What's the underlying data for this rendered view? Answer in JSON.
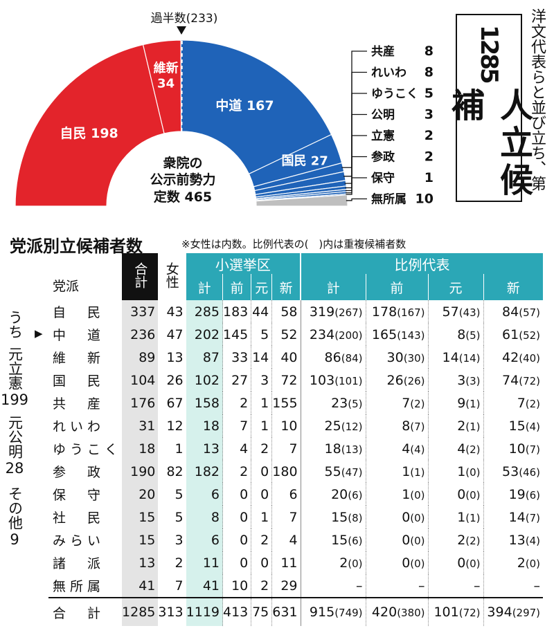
{
  "chart_data": [
    {
      "type": "pie",
      "title": "衆院の公示前勢力",
      "total_label": "定数",
      "total": 465,
      "majority_label": "過半数",
      "majority": 233,
      "slices": [
        {
          "name": "自民",
          "value": 198,
          "color": "#e3242b",
          "label_side": "left"
        },
        {
          "name": "維新",
          "value": 34,
          "color": "#e3242b",
          "label_side": "left"
        },
        {
          "name": "中道",
          "value": 167,
          "color": "#1f63b8",
          "label_side": "right"
        },
        {
          "name": "国民",
          "value": 27,
          "color": "#1f63b8",
          "label_side": "right"
        },
        {
          "name": "共産",
          "value": 8,
          "color": "#1f63b8"
        },
        {
          "name": "れいわ",
          "value": 8,
          "color": "#1f63b8"
        },
        {
          "name": "ゆうこく",
          "value": 5,
          "color": "#1f63b8"
        },
        {
          "name": "公明",
          "value": 3,
          "color": "#1f63b8"
        },
        {
          "name": "立憲",
          "value": 2,
          "color": "#1f63b8"
        },
        {
          "name": "参政",
          "value": 2,
          "color": "#1f63b8"
        },
        {
          "name": "保守",
          "value": 1,
          "color": "#1f63b8"
        },
        {
          "name": "無所属",
          "value": 10,
          "color": "#bfbfbf"
        }
      ]
    },
    {
      "type": "table",
      "title": "党派別立候補者数",
      "note": "※女性は内数。比例代表の(　)内は重複候補者数",
      "headers": {
        "party": "党派",
        "total": "合計",
        "female": "女性",
        "district": "小選挙区",
        "pr": "比例代表",
        "kei": "計",
        "mae": "前",
        "moto": "元",
        "shin": "新"
      },
      "rows": [
        {
          "party": "自　民",
          "marker": "",
          "total": "337",
          "female": "43",
          "d_kei": "285",
          "d_mae": "183",
          "d_moto": "44",
          "d_shin": "58",
          "p_kei": "319",
          "p_kei_dup": "(267)",
          "p_mae": "178",
          "p_mae_dup": "(167)",
          "p_moto": "57",
          "p_moto_dup": "(43)",
          "p_shin": "84",
          "p_shin_dup": "(57)"
        },
        {
          "party": "中　道",
          "marker": "▶",
          "total": "236",
          "female": "47",
          "d_kei": "202",
          "d_mae": "145",
          "d_moto": "5",
          "d_shin": "52",
          "p_kei": "234",
          "p_kei_dup": "(200)",
          "p_mae": "165",
          "p_mae_dup": "(143)",
          "p_moto": "8",
          "p_moto_dup": "(5)",
          "p_shin": "61",
          "p_shin_dup": "(52)"
        },
        {
          "party": "維　新",
          "marker": "",
          "total": "89",
          "female": "13",
          "d_kei": "87",
          "d_mae": "33",
          "d_moto": "14",
          "d_shin": "40",
          "p_kei": "86",
          "p_kei_dup": "(84)",
          "p_mae": "30",
          "p_mae_dup": "(30)",
          "p_moto": "14",
          "p_moto_dup": "(14)",
          "p_shin": "42",
          "p_shin_dup": "(40)"
        },
        {
          "party": "国　民",
          "marker": "",
          "total": "104",
          "female": "26",
          "d_kei": "102",
          "d_mae": "27",
          "d_moto": "3",
          "d_shin": "72",
          "p_kei": "103",
          "p_kei_dup": "(101)",
          "p_mae": "26",
          "p_mae_dup": "(26)",
          "p_moto": "3",
          "p_moto_dup": "(3)",
          "p_shin": "74",
          "p_shin_dup": "(72)"
        },
        {
          "party": "共　産",
          "marker": "",
          "total": "176",
          "female": "67",
          "d_kei": "158",
          "d_mae": "2",
          "d_moto": "1",
          "d_shin": "155",
          "p_kei": "23",
          "p_kei_dup": "(5)",
          "p_mae": "7",
          "p_mae_dup": "(2)",
          "p_moto": "9",
          "p_moto_dup": "(1)",
          "p_shin": "7",
          "p_shin_dup": "(2)"
        },
        {
          "party": "れいわ",
          "marker": "",
          "total": "31",
          "female": "12",
          "d_kei": "18",
          "d_mae": "7",
          "d_moto": "1",
          "d_shin": "10",
          "p_kei": "25",
          "p_kei_dup": "(12)",
          "p_mae": "8",
          "p_mae_dup": "(7)",
          "p_moto": "2",
          "p_moto_dup": "(1)",
          "p_shin": "15",
          "p_shin_dup": "(4)"
        },
        {
          "party": "ゆうこく",
          "marker": "",
          "total": "18",
          "female": "1",
          "d_kei": "13",
          "d_mae": "4",
          "d_moto": "2",
          "d_shin": "7",
          "p_kei": "18",
          "p_kei_dup": "(13)",
          "p_mae": "4",
          "p_mae_dup": "(4)",
          "p_moto": "4",
          "p_moto_dup": "(2)",
          "p_shin": "10",
          "p_shin_dup": "(7)"
        },
        {
          "party": "参　政",
          "marker": "",
          "total": "190",
          "female": "82",
          "d_kei": "182",
          "d_mae": "2",
          "d_moto": "0",
          "d_shin": "180",
          "p_kei": "55",
          "p_kei_dup": "(47)",
          "p_mae": "1",
          "p_mae_dup": "(1)",
          "p_moto": "1",
          "p_moto_dup": "(0)",
          "p_shin": "53",
          "p_shin_dup": "(46)"
        },
        {
          "party": "保　守",
          "marker": "",
          "total": "20",
          "female": "5",
          "d_kei": "6",
          "d_mae": "0",
          "d_moto": "0",
          "d_shin": "6",
          "p_kei": "20",
          "p_kei_dup": "(6)",
          "p_mae": "1",
          "p_mae_dup": "(0)",
          "p_moto": "0",
          "p_moto_dup": "(0)",
          "p_shin": "19",
          "p_shin_dup": "(6)"
        },
        {
          "party": "社　民",
          "marker": "",
          "total": "15",
          "female": "5",
          "d_kei": "8",
          "d_mae": "0",
          "d_moto": "1",
          "d_shin": "7",
          "p_kei": "15",
          "p_kei_dup": "(8)",
          "p_mae": "0",
          "p_mae_dup": "(0)",
          "p_moto": "1",
          "p_moto_dup": "(1)",
          "p_shin": "14",
          "p_shin_dup": "(7)"
        },
        {
          "party": "みらい",
          "marker": "",
          "total": "15",
          "female": "3",
          "d_kei": "6",
          "d_mae": "0",
          "d_moto": "2",
          "d_shin": "4",
          "p_kei": "15",
          "p_kei_dup": "(6)",
          "p_mae": "0",
          "p_mae_dup": "(0)",
          "p_moto": "2",
          "p_moto_dup": "(2)",
          "p_shin": "13",
          "p_shin_dup": "(4)"
        },
        {
          "party": "諸　派",
          "marker": "",
          "total": "13",
          "female": "2",
          "d_kei": "11",
          "d_mae": "0",
          "d_moto": "0",
          "d_shin": "11",
          "p_kei": "2",
          "p_kei_dup": "(0)",
          "p_mae": "0",
          "p_mae_dup": "(0)",
          "p_moto": "0",
          "p_moto_dup": "(0)",
          "p_shin": "2",
          "p_shin_dup": "(0)"
        },
        {
          "party": "無所属",
          "marker": "",
          "total": "41",
          "female": "7",
          "d_kei": "41",
          "d_mae": "10",
          "d_moto": "2",
          "d_shin": "29",
          "p_kei": "–",
          "p_kei_dup": "",
          "p_mae": "–",
          "p_mae_dup": "",
          "p_moto": "–",
          "p_moto_dup": "",
          "p_shin": "–",
          "p_shin_dup": ""
        }
      ],
      "total_row": {
        "party": "合　計",
        "total": "1285",
        "female": "313",
        "d_kei": "1119",
        "d_mae": "413",
        "d_moto": "75",
        "d_shin": "631",
        "p_kei": "915",
        "p_kei_dup": "(749)",
        "p_mae": "420",
        "p_mae_dup": "(380)",
        "p_moto": "101",
        "p_moto_dup": "(72)",
        "p_shin": "394",
        "p_shin_dup": "(297)"
      },
      "side_note": [
        "うち",
        "元立憲",
        "199",
        "元公明",
        "28",
        "その他",
        "9"
      ]
    }
  ],
  "headline": {
    "number": "1285",
    "text": "人立候補"
  },
  "side_text": "洋文代表らと並び立ち、第"
}
